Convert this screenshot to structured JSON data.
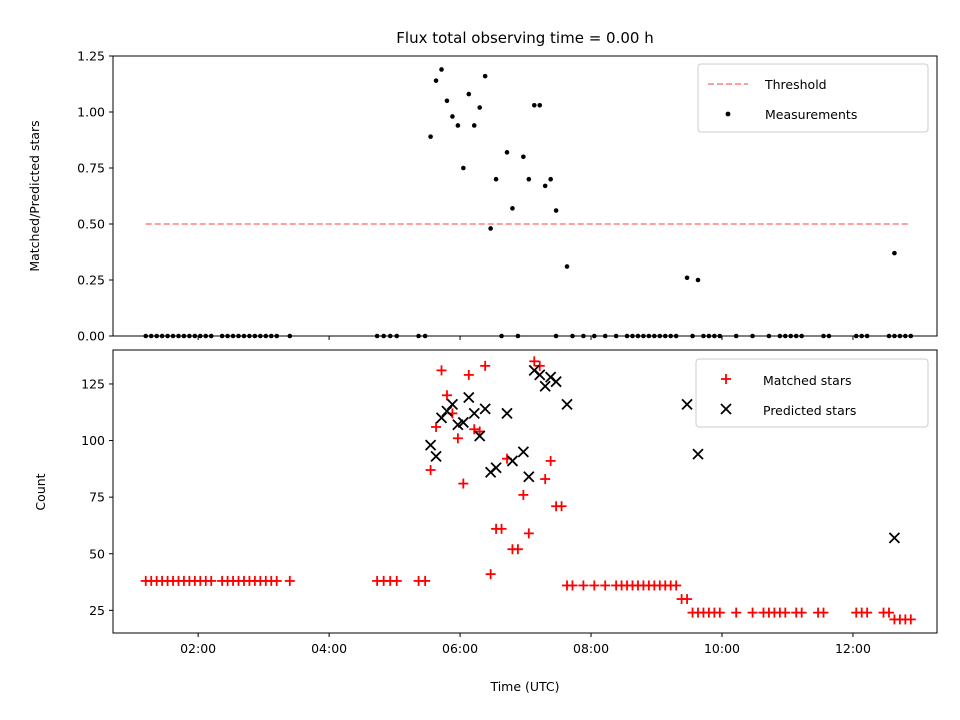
{
  "chart_data": [
    {
      "type": "scatter",
      "title": "Flux total observing time = 0.00 h",
      "xlabel": "",
      "ylabel": "Matched/Predicted stars",
      "ylim": [
        0,
        1.25
      ],
      "xlim": [
        "00:42",
        "13:17"
      ],
      "y_ticks": [
        "0.00",
        "0.25",
        "0.50",
        "0.75",
        "1.00",
        "1.25"
      ],
      "legend_position": "top-right",
      "legend": [
        "Threshold",
        "Measurements"
      ],
      "threshold": {
        "name": "Threshold",
        "value": 0.5,
        "x_start": "01:12",
        "x_end": "12:52",
        "color": "#ff7f7f",
        "style": "dashed"
      },
      "series": [
        {
          "name": "Measurements",
          "marker": "dot",
          "color": "#000000",
          "points": [
            [
              "01:12",
              0
            ],
            [
              "01:17",
              0
            ],
            [
              "01:22",
              0
            ],
            [
              "01:27",
              0
            ],
            [
              "01:32",
              0
            ],
            [
              "01:37",
              0
            ],
            [
              "01:42",
              0
            ],
            [
              "01:47",
              0
            ],
            [
              "01:52",
              0
            ],
            [
              "01:57",
              0
            ],
            [
              "02:02",
              0
            ],
            [
              "02:07",
              0
            ],
            [
              "02:12",
              0
            ],
            [
              "02:22",
              0
            ],
            [
              "02:27",
              0
            ],
            [
              "02:32",
              0
            ],
            [
              "02:37",
              0
            ],
            [
              "02:42",
              0
            ],
            [
              "02:47",
              0
            ],
            [
              "02:52",
              0
            ],
            [
              "02:57",
              0
            ],
            [
              "03:02",
              0
            ],
            [
              "03:07",
              0
            ],
            [
              "03:12",
              0
            ],
            [
              "03:24",
              0
            ],
            [
              "04:44",
              0
            ],
            [
              "04:50",
              0
            ],
            [
              "04:56",
              0
            ],
            [
              "05:02",
              0
            ],
            [
              "05:22",
              0
            ],
            [
              "05:28",
              0
            ],
            [
              "05:33",
              0.89
            ],
            [
              "05:38",
              1.14
            ],
            [
              "05:43",
              1.19
            ],
            [
              "05:48",
              1.05
            ],
            [
              "05:53",
              0.98
            ],
            [
              "05:58",
              0.94
            ],
            [
              "06:03",
              0.75
            ],
            [
              "06:08",
              1.08
            ],
            [
              "06:13",
              0.94
            ],
            [
              "06:18",
              1.02
            ],
            [
              "06:23",
              1.16
            ],
            [
              "06:28",
              0.48
            ],
            [
              "06:33",
              0.7
            ],
            [
              "06:38",
              0
            ],
            [
              "06:43",
              0.82
            ],
            [
              "06:48",
              0.57
            ],
            [
              "06:53",
              0
            ],
            [
              "06:58",
              0.8
            ],
            [
              "07:03",
              0.7
            ],
            [
              "07:08",
              1.03
            ],
            [
              "07:13",
              1.03
            ],
            [
              "07:18",
              0.67
            ],
            [
              "07:23",
              0.7
            ],
            [
              "07:28",
              0.56
            ],
            [
              "07:38",
              0.31
            ],
            [
              "07:28",
              0
            ],
            [
              "07:43",
              0
            ],
            [
              "07:53",
              0
            ],
            [
              "08:03",
              0
            ],
            [
              "08:13",
              0
            ],
            [
              "08:23",
              0
            ],
            [
              "08:33",
              0
            ],
            [
              "08:38",
              0
            ],
            [
              "08:43",
              0
            ],
            [
              "08:48",
              0
            ],
            [
              "08:53",
              0
            ],
            [
              "08:58",
              0
            ],
            [
              "09:03",
              0
            ],
            [
              "09:08",
              0
            ],
            [
              "09:13",
              0
            ],
            [
              "09:18",
              0
            ],
            [
              "09:28",
              0.26
            ],
            [
              "09:38",
              0.25
            ],
            [
              "09:33",
              0
            ],
            [
              "09:43",
              0
            ],
            [
              "09:48",
              0
            ],
            [
              "09:53",
              0
            ],
            [
              "09:58",
              0
            ],
            [
              "10:13",
              0
            ],
            [
              "10:28",
              0
            ],
            [
              "10:43",
              0
            ],
            [
              "10:53",
              0
            ],
            [
              "10:58",
              0
            ],
            [
              "11:03",
              0
            ],
            [
              "11:08",
              0
            ],
            [
              "11:13",
              0
            ],
            [
              "11:33",
              0
            ],
            [
              "11:38",
              0
            ],
            [
              "12:03",
              0
            ],
            [
              "12:08",
              0
            ],
            [
              "12:13",
              0
            ],
            [
              "12:33",
              0
            ],
            [
              "12:38",
              0
            ],
            [
              "12:38",
              0.37
            ],
            [
              "12:43",
              0
            ],
            [
              "12:48",
              0
            ],
            [
              "12:53",
              0
            ]
          ]
        }
      ]
    },
    {
      "type": "scatter",
      "title": "",
      "xlabel": "Time (UTC)",
      "ylabel": "Count",
      "ylim": [
        15,
        140
      ],
      "xlim": [
        "00:42",
        "13:17"
      ],
      "x_ticks": [
        "02:00",
        "04:00",
        "06:00",
        "08:00",
        "10:00",
        "12:00"
      ],
      "y_ticks": [
        "25",
        "50",
        "75",
        "100",
        "125"
      ],
      "legend_position": "top-right",
      "legend": [
        "Matched stars",
        "Predicted stars"
      ],
      "series": [
        {
          "name": "Matched stars",
          "marker": "plus",
          "color": "#ff0000",
          "points": [
            [
              "01:12",
              38
            ],
            [
              "01:17",
              38
            ],
            [
              "01:22",
              38
            ],
            [
              "01:27",
              38
            ],
            [
              "01:32",
              38
            ],
            [
              "01:37",
              38
            ],
            [
              "01:42",
              38
            ],
            [
              "01:47",
              38
            ],
            [
              "01:52",
              38
            ],
            [
              "01:57",
              38
            ],
            [
              "02:02",
              38
            ],
            [
              "02:07",
              38
            ],
            [
              "02:12",
              38
            ],
            [
              "02:22",
              38
            ],
            [
              "02:27",
              38
            ],
            [
              "02:32",
              38
            ],
            [
              "02:37",
              38
            ],
            [
              "02:42",
              38
            ],
            [
              "02:47",
              38
            ],
            [
              "02:52",
              38
            ],
            [
              "02:57",
              38
            ],
            [
              "03:02",
              38
            ],
            [
              "03:07",
              38
            ],
            [
              "03:12",
              38
            ],
            [
              "03:24",
              38
            ],
            [
              "04:44",
              38
            ],
            [
              "04:50",
              38
            ],
            [
              "04:56",
              38
            ],
            [
              "05:02",
              38
            ],
            [
              "05:22",
              38
            ],
            [
              "05:28",
              38
            ],
            [
              "05:33",
              87
            ],
            [
              "05:38",
              106
            ],
            [
              "05:43",
              131
            ],
            [
              "05:48",
              120
            ],
            [
              "05:53",
              112
            ],
            [
              "05:58",
              101
            ],
            [
              "06:03",
              81
            ],
            [
              "06:08",
              129
            ],
            [
              "06:13",
              105
            ],
            [
              "06:18",
              104
            ],
            [
              "06:23",
              133
            ],
            [
              "06:28",
              41
            ],
            [
              "06:33",
              61
            ],
            [
              "06:38",
              61
            ],
            [
              "06:43",
              92
            ],
            [
              "06:48",
              52
            ],
            [
              "06:53",
              52
            ],
            [
              "06:58",
              76
            ],
            [
              "07:03",
              59
            ],
            [
              "07:08",
              135
            ],
            [
              "07:13",
              133
            ],
            [
              "07:18",
              83
            ],
            [
              "07:23",
              91
            ],
            [
              "07:28",
              71
            ],
            [
              "07:33",
              71
            ],
            [
              "07:38",
              36
            ],
            [
              "07:43",
              36
            ],
            [
              "07:53",
              36
            ],
            [
              "08:03",
              36
            ],
            [
              "08:13",
              36
            ],
            [
              "08:23",
              36
            ],
            [
              "08:28",
              36
            ],
            [
              "08:33",
              36
            ],
            [
              "08:38",
              36
            ],
            [
              "08:43",
              36
            ],
            [
              "08:48",
              36
            ],
            [
              "08:53",
              36
            ],
            [
              "08:58",
              36
            ],
            [
              "09:03",
              36
            ],
            [
              "09:08",
              36
            ],
            [
              "09:13",
              36
            ],
            [
              "09:18",
              36
            ],
            [
              "09:23",
              30
            ],
            [
              "09:28",
              30
            ],
            [
              "09:33",
              24
            ],
            [
              "09:38",
              24
            ],
            [
              "09:43",
              24
            ],
            [
              "09:48",
              24
            ],
            [
              "09:53",
              24
            ],
            [
              "09:58",
              24
            ],
            [
              "10:13",
              24
            ],
            [
              "10:28",
              24
            ],
            [
              "10:38",
              24
            ],
            [
              "10:43",
              24
            ],
            [
              "10:48",
              24
            ],
            [
              "10:53",
              24
            ],
            [
              "10:58",
              24
            ],
            [
              "11:08",
              24
            ],
            [
              "11:13",
              24
            ],
            [
              "11:28",
              24
            ],
            [
              "11:33",
              24
            ],
            [
              "12:03",
              24
            ],
            [
              "12:08",
              24
            ],
            [
              "12:13",
              24
            ],
            [
              "12:28",
              24
            ],
            [
              "12:33",
              24
            ],
            [
              "12:38",
              21
            ],
            [
              "12:43",
              21
            ],
            [
              "12:48",
              21
            ],
            [
              "12:53",
              21
            ]
          ]
        },
        {
          "name": "Predicted stars",
          "marker": "x",
          "color": "#000000",
          "points": [
            [
              "05:33",
              98
            ],
            [
              "05:38",
              93
            ],
            [
              "05:43",
              110
            ],
            [
              "05:48",
              113
            ],
            [
              "05:53",
              116
            ],
            [
              "05:58",
              107
            ],
            [
              "06:03",
              108
            ],
            [
              "06:08",
              119
            ],
            [
              "06:13",
              112
            ],
            [
              "06:18",
              102
            ],
            [
              "06:23",
              114
            ],
            [
              "06:28",
              86
            ],
            [
              "06:33",
              88
            ],
            [
              "06:43",
              112
            ],
            [
              "06:48",
              91
            ],
            [
              "06:58",
              95
            ],
            [
              "07:03",
              84
            ],
            [
              "07:08",
              131
            ],
            [
              "07:13",
              129
            ],
            [
              "07:18",
              124
            ],
            [
              "07:23",
              128
            ],
            [
              "07:28",
              126
            ],
            [
              "07:38",
              116
            ],
            [
              "09:28",
              116
            ],
            [
              "09:38",
              94
            ],
            [
              "12:38",
              57
            ]
          ]
        }
      ]
    }
  ]
}
